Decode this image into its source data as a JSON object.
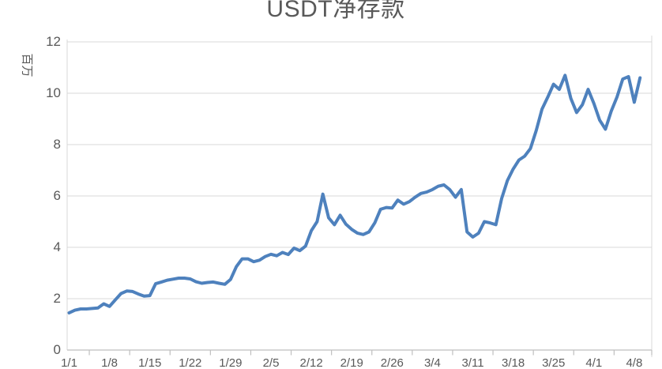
{
  "chart": {
    "title": "USDT净存款",
    "y_axis_title": "百万",
    "colors": {
      "line": "#4E81BD",
      "grid": "#D9D9D9",
      "axis": "#BFBFBF",
      "text": "#595959",
      "background": "#FFFFFF"
    }
  },
  "chart_data": {
    "type": "line",
    "title": "USDT净存款",
    "xlabel": "",
    "ylabel": "百万",
    "ylim": [
      0,
      12
    ],
    "y_ticks": [
      0,
      2,
      4,
      6,
      8,
      10,
      12
    ],
    "grid": true,
    "legend": false,
    "x_tick_labels": [
      "1/1",
      "1/8",
      "1/15",
      "1/22",
      "1/29",
      "2/5",
      "2/12",
      "2/19",
      "2/26",
      "3/4",
      "3/11",
      "3/18",
      "3/25",
      "4/1",
      "4/8"
    ],
    "label_interval": 7,
    "x": [
      "1/1",
      "1/2",
      "1/3",
      "1/4",
      "1/5",
      "1/6",
      "1/7",
      "1/8",
      "1/9",
      "1/10",
      "1/11",
      "1/12",
      "1/13",
      "1/14",
      "1/15",
      "1/16",
      "1/17",
      "1/18",
      "1/19",
      "1/20",
      "1/21",
      "1/22",
      "1/23",
      "1/24",
      "1/25",
      "1/26",
      "1/27",
      "1/28",
      "1/29",
      "1/30",
      "1/31",
      "2/1",
      "2/2",
      "2/3",
      "2/4",
      "2/5",
      "2/6",
      "2/7",
      "2/8",
      "2/9",
      "2/10",
      "2/11",
      "2/12",
      "2/13",
      "2/14",
      "2/15",
      "2/16",
      "2/17",
      "2/18",
      "2/19",
      "2/20",
      "2/21",
      "2/22",
      "2/23",
      "2/24",
      "2/25",
      "2/26",
      "2/27",
      "2/28",
      "2/29",
      "3/1",
      "3/2",
      "3/3",
      "3/4",
      "3/5",
      "3/6",
      "3/7",
      "3/8",
      "3/9",
      "3/10",
      "3/11",
      "3/12",
      "3/13",
      "3/14",
      "3/15",
      "3/16",
      "3/17",
      "3/18",
      "3/19",
      "3/20",
      "3/21",
      "3/22",
      "3/23",
      "3/24",
      "3/25",
      "3/26",
      "3/27",
      "3/28",
      "3/29",
      "3/30",
      "3/31",
      "4/1",
      "4/2",
      "4/3",
      "4/4",
      "4/5",
      "4/6",
      "4/7",
      "4/8",
      "4/9"
    ],
    "values": [
      1.45,
      1.55,
      1.6,
      1.6,
      1.62,
      1.64,
      1.8,
      1.7,
      1.95,
      2.2,
      2.3,
      2.28,
      2.18,
      2.1,
      2.12,
      2.58,
      2.65,
      2.72,
      2.76,
      2.8,
      2.8,
      2.77,
      2.66,
      2.6,
      2.63,
      2.65,
      2.6,
      2.56,
      2.75,
      3.25,
      3.55,
      3.55,
      3.44,
      3.5,
      3.64,
      3.73,
      3.67,
      3.8,
      3.72,
      3.97,
      3.87,
      4.05,
      4.65,
      5.0,
      6.07,
      5.15,
      4.88,
      5.25,
      4.9,
      4.7,
      4.55,
      4.5,
      4.6,
      4.95,
      5.48,
      5.55,
      5.53,
      5.84,
      5.68,
      5.78,
      5.95,
      6.1,
      6.15,
      6.25,
      6.38,
      6.43,
      6.25,
      5.95,
      6.25,
      4.6,
      4.4,
      4.55,
      5.0,
      4.95,
      4.88,
      5.9,
      6.6,
      7.05,
      7.4,
      7.55,
      7.85,
      8.55,
      9.38,
      9.85,
      10.35,
      10.15,
      10.7,
      9.8,
      9.25,
      9.55,
      10.15,
      9.6,
      8.95,
      8.6,
      9.3,
      9.85,
      10.55,
      10.65,
      9.65,
      10.6
    ]
  }
}
